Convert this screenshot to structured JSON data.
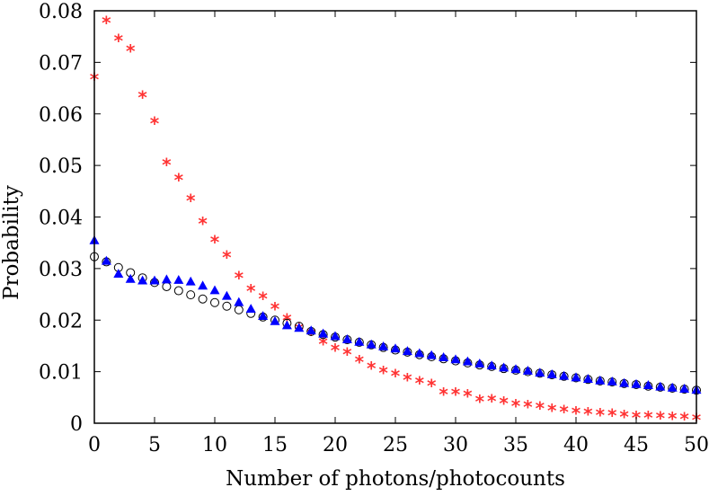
{
  "chart_data": {
    "type": "scatter",
    "title": "",
    "xlabel": "Number of photons/photocounts",
    "ylabel": "Probability",
    "xlim": [
      0,
      50
    ],
    "ylim": [
      0,
      0.08
    ],
    "xticks": [
      0,
      5,
      10,
      15,
      20,
      25,
      30,
      35,
      40,
      45,
      50
    ],
    "yticks": [
      0,
      0.01,
      0.02,
      0.03,
      0.04,
      0.05,
      0.06,
      0.07,
      0.08
    ],
    "ytick_labels": [
      "0",
      "0.01",
      "0.02",
      "0.03",
      "0.04",
      "0.05",
      "0.06",
      "0.07",
      "0.08"
    ],
    "grid": false,
    "legend": "none",
    "series": [
      {
        "marker": "asterisk",
        "color": "#ff3333",
        "x": [
          0,
          1,
          2,
          3,
          4,
          5,
          6,
          7,
          8,
          9,
          10,
          11,
          12,
          13,
          14,
          15,
          16,
          17,
          18,
          19,
          20,
          21,
          22,
          23,
          24,
          25,
          26,
          27,
          28,
          29,
          30,
          31,
          32,
          33,
          34,
          35,
          36,
          37,
          38,
          39,
          40,
          41,
          42,
          43,
          44,
          45,
          46,
          47,
          48,
          49,
          50
        ],
        "y": [
          0.067,
          0.078,
          0.0745,
          0.0725,
          0.0635,
          0.0585,
          0.0505,
          0.0475,
          0.0435,
          0.039,
          0.0355,
          0.0325,
          0.0285,
          0.026,
          0.0245,
          0.0225,
          0.0203,
          0.0185,
          0.0175,
          0.0157,
          0.0145,
          0.0137,
          0.0122,
          0.011,
          0.0101,
          0.0095,
          0.0087,
          0.0081,
          0.0076,
          0.0059,
          0.0059,
          0.0056,
          0.0045,
          0.0046,
          0.0042,
          0.0037,
          0.0035,
          0.0032,
          0.0028,
          0.0025,
          0.0023,
          0.0021,
          0.0019,
          0.0018,
          0.0016,
          0.0014,
          0.0014,
          0.0013,
          0.0012,
          0.0011,
          0.001
        ]
      },
      {
        "marker": "open-circle",
        "color": "#000000",
        "x": [
          0,
          1,
          2,
          3,
          4,
          5,
          6,
          7,
          8,
          9,
          10,
          11,
          12,
          13,
          14,
          15,
          16,
          17,
          18,
          19,
          20,
          21,
          22,
          23,
          24,
          25,
          26,
          27,
          28,
          29,
          30,
          31,
          32,
          33,
          34,
          35,
          36,
          37,
          38,
          39,
          40,
          41,
          42,
          43,
          44,
          45,
          46,
          47,
          48,
          49,
          50
        ],
        "y": [
          0.0323,
          0.0313,
          0.0302,
          0.0292,
          0.0282,
          0.0273,
          0.0265,
          0.0257,
          0.0249,
          0.0241,
          0.0234,
          0.0227,
          0.022,
          0.0213,
          0.0206,
          0.02,
          0.0194,
          0.0188,
          0.0178,
          0.0172,
          0.0167,
          0.0162,
          0.0157,
          0.0152,
          0.0147,
          0.0142,
          0.0138,
          0.0133,
          0.0129,
          0.0125,
          0.0121,
          0.0117,
          0.0113,
          0.011,
          0.0106,
          0.0103,
          0.01,
          0.0097,
          0.0094,
          0.0091,
          0.0088,
          0.0085,
          0.0082,
          0.008,
          0.0077,
          0.0075,
          0.0072,
          0.007,
          0.0068,
          0.0066,
          0.0064
        ]
      },
      {
        "marker": "filled-triangle",
        "color": "#0000ff",
        "x": [
          0,
          1,
          2,
          3,
          4,
          5,
          6,
          7,
          8,
          9,
          10,
          11,
          12,
          13,
          14,
          15,
          16,
          17,
          18,
          19,
          20,
          21,
          22,
          23,
          24,
          25,
          26,
          27,
          28,
          29,
          30,
          31,
          32,
          33,
          34,
          35,
          36,
          37,
          38,
          39,
          40,
          41,
          42,
          43,
          44,
          45,
          46,
          47,
          48,
          49,
          50
        ],
        "y": [
          0.0355,
          0.0315,
          0.029,
          0.028,
          0.0277,
          0.0277,
          0.0279,
          0.0278,
          0.0275,
          0.0267,
          0.0258,
          0.0247,
          0.0235,
          0.0222,
          0.0208,
          0.0198,
          0.019,
          0.0185,
          0.018,
          0.0174,
          0.0169,
          0.0163,
          0.0158,
          0.0153,
          0.0149,
          0.0145,
          0.014,
          0.0136,
          0.0132,
          0.0128,
          0.0124,
          0.012,
          0.0116,
          0.0112,
          0.0108,
          0.0105,
          0.0102,
          0.0098,
          0.0095,
          0.0092,
          0.0089,
          0.0086,
          0.0083,
          0.0081,
          0.0078,
          0.0076,
          0.0074,
          0.0071,
          0.0069,
          0.0067,
          0.0065
        ]
      }
    ]
  }
}
